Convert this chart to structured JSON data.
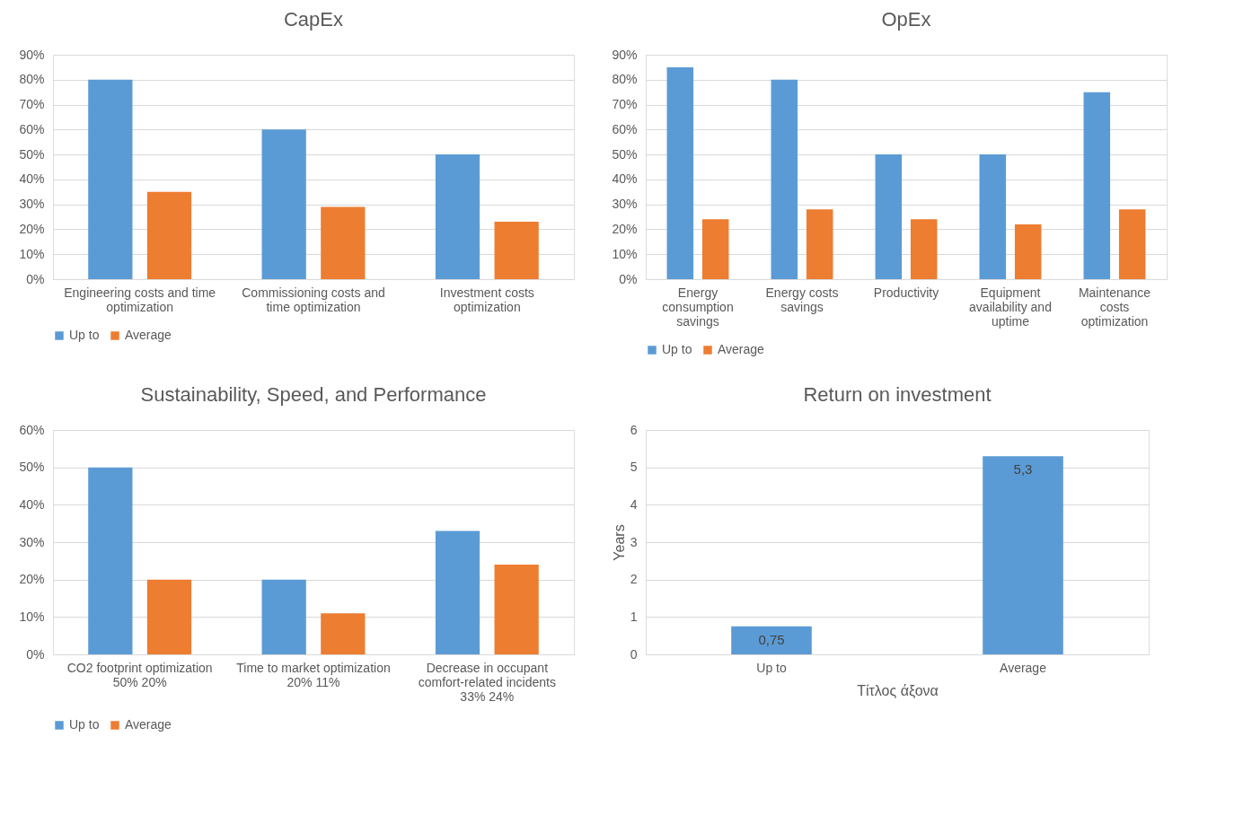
{
  "chart_data": [
    {
      "type": "bar",
      "title": "CapEx",
      "categories": [
        "Engineering costs and time optimization",
        "Commissioning costs and time optimization",
        "Investment costs optimization"
      ],
      "series": [
        {
          "name": "Up to",
          "color": "#5b9bd5",
          "values": [
            80,
            60,
            50
          ]
        },
        {
          "name": "Average",
          "color": "#ed7d31",
          "values": [
            35,
            29,
            23
          ]
        }
      ],
      "ylim": [
        0,
        90
      ],
      "yticks": [
        {
          "value": 0,
          "label": "0%"
        },
        {
          "value": 10,
          "label": "10%"
        },
        {
          "value": 20,
          "label": "20%"
        },
        {
          "value": 30,
          "label": "30%"
        },
        {
          "value": 40,
          "label": "40%"
        },
        {
          "value": 50,
          "label": "50%"
        },
        {
          "value": 60,
          "label": "60%"
        },
        {
          "value": 70,
          "label": "70%"
        },
        {
          "value": 80,
          "label": "80%"
        },
        {
          "value": 90,
          "label": "90%"
        }
      ],
      "grid": "y",
      "legend": "bottom"
    },
    {
      "type": "bar",
      "title": "OpEx",
      "categories": [
        "Energy consumption savings",
        "Energy costs savings",
        "Productivity",
        "Equipment availability and uptime",
        "Maintenance costs optimization"
      ],
      "series": [
        {
          "name": "Up to",
          "color": "#5b9bd5",
          "values": [
            85,
            80,
            50,
            50,
            75
          ]
        },
        {
          "name": "Average",
          "color": "#ed7d31",
          "values": [
            24,
            28,
            24,
            22,
            28
          ]
        }
      ],
      "ylim": [
        0,
        90
      ],
      "yticks": [
        {
          "value": 0,
          "label": "0%"
        },
        {
          "value": 10,
          "label": "10%"
        },
        {
          "value": 20,
          "label": "20%"
        },
        {
          "value": 30,
          "label": "30%"
        },
        {
          "value": 40,
          "label": "40%"
        },
        {
          "value": 50,
          "label": "50%"
        },
        {
          "value": 60,
          "label": "60%"
        },
        {
          "value": 70,
          "label": "70%"
        },
        {
          "value": 80,
          "label": "80%"
        },
        {
          "value": 90,
          "label": "90%"
        }
      ],
      "grid": "y",
      "legend": "bottom"
    },
    {
      "type": "bar",
      "title": "Sustainability, Speed, and Performance",
      "categories": [
        "CO2 footprint optimization 50% 20%",
        "Time to market optimization 20% 11%",
        "Decrease in occupant comfort-related incidents 33% 24%"
      ],
      "series": [
        {
          "name": "Up to",
          "color": "#5b9bd5",
          "values": [
            50,
            20,
            33
          ]
        },
        {
          "name": "Average",
          "color": "#ed7d31",
          "values": [
            20,
            11,
            24
          ]
        }
      ],
      "ylim": [
        0,
        60
      ],
      "yticks": [
        {
          "value": 0,
          "label": "0%"
        },
        {
          "value": 10,
          "label": "10%"
        },
        {
          "value": 20,
          "label": "20%"
        },
        {
          "value": 30,
          "label": "30%"
        },
        {
          "value": 40,
          "label": "40%"
        },
        {
          "value": 50,
          "label": "50%"
        },
        {
          "value": 60,
          "label": "60%"
        }
      ],
      "grid": "y",
      "legend": "bottom"
    },
    {
      "type": "bar",
      "title": "Return on investment",
      "xlabel": "Τίτλος άξονα",
      "ylabel": "Years",
      "categories": [
        "Up to",
        "Average"
      ],
      "values": [
        0.75,
        5.3
      ],
      "value_labels": [
        "0,75",
        "5,3"
      ],
      "colors": [
        "#5b9bd5",
        "#5b9bd5"
      ],
      "ylim": [
        0,
        6
      ],
      "yticks": [
        0,
        1,
        2,
        3,
        4,
        5,
        6
      ],
      "grid": "y"
    }
  ]
}
